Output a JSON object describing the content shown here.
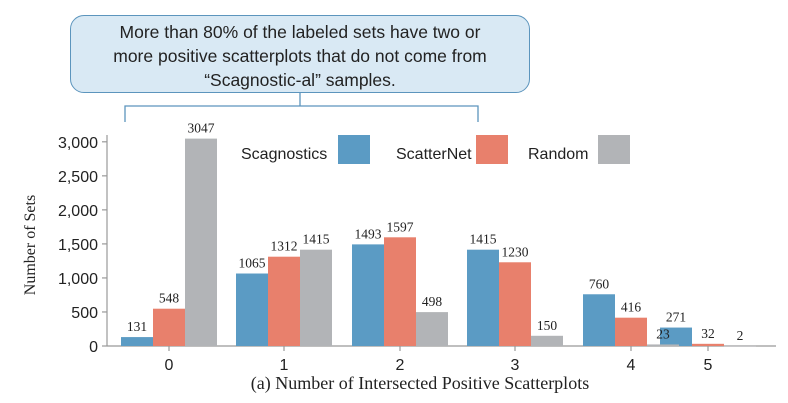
{
  "annotation": {
    "lines": [
      "More than 80% of the labeled sets have two or",
      "more positive scatterplots that do not come from",
      "“Scagnostic-al” samples."
    ]
  },
  "chart_data": {
    "type": "bar",
    "title": "",
    "xlabel": "(a) Number of Intersected Positive Scatterplots",
    "ylabel": "Number of Sets",
    "categories": [
      "0",
      "1",
      "2",
      "3",
      "4",
      "5"
    ],
    "ylim": [
      0,
      3100
    ],
    "yticks": [
      0,
      500,
      1000,
      1500,
      2000,
      2500,
      3000
    ],
    "ytick_labels": [
      "0",
      "500",
      "1,000",
      "1,500",
      "2,000",
      "2,500",
      "3,000"
    ],
    "legend_position": "top-right",
    "grid": false,
    "series": [
      {
        "name": "Scagnostics",
        "color": "#5b9bc4",
        "values": [
          131,
          1065,
          1493,
          1415,
          760,
          271
        ]
      },
      {
        "name": "ScatterNet",
        "color": "#e8806c",
        "values": [
          548,
          1312,
          1597,
          1230,
          416,
          32
        ]
      },
      {
        "name": "Random",
        "color": "#b2b4b7",
        "values": [
          3047,
          1415,
          498,
          150,
          23,
          2
        ]
      }
    ]
  }
}
